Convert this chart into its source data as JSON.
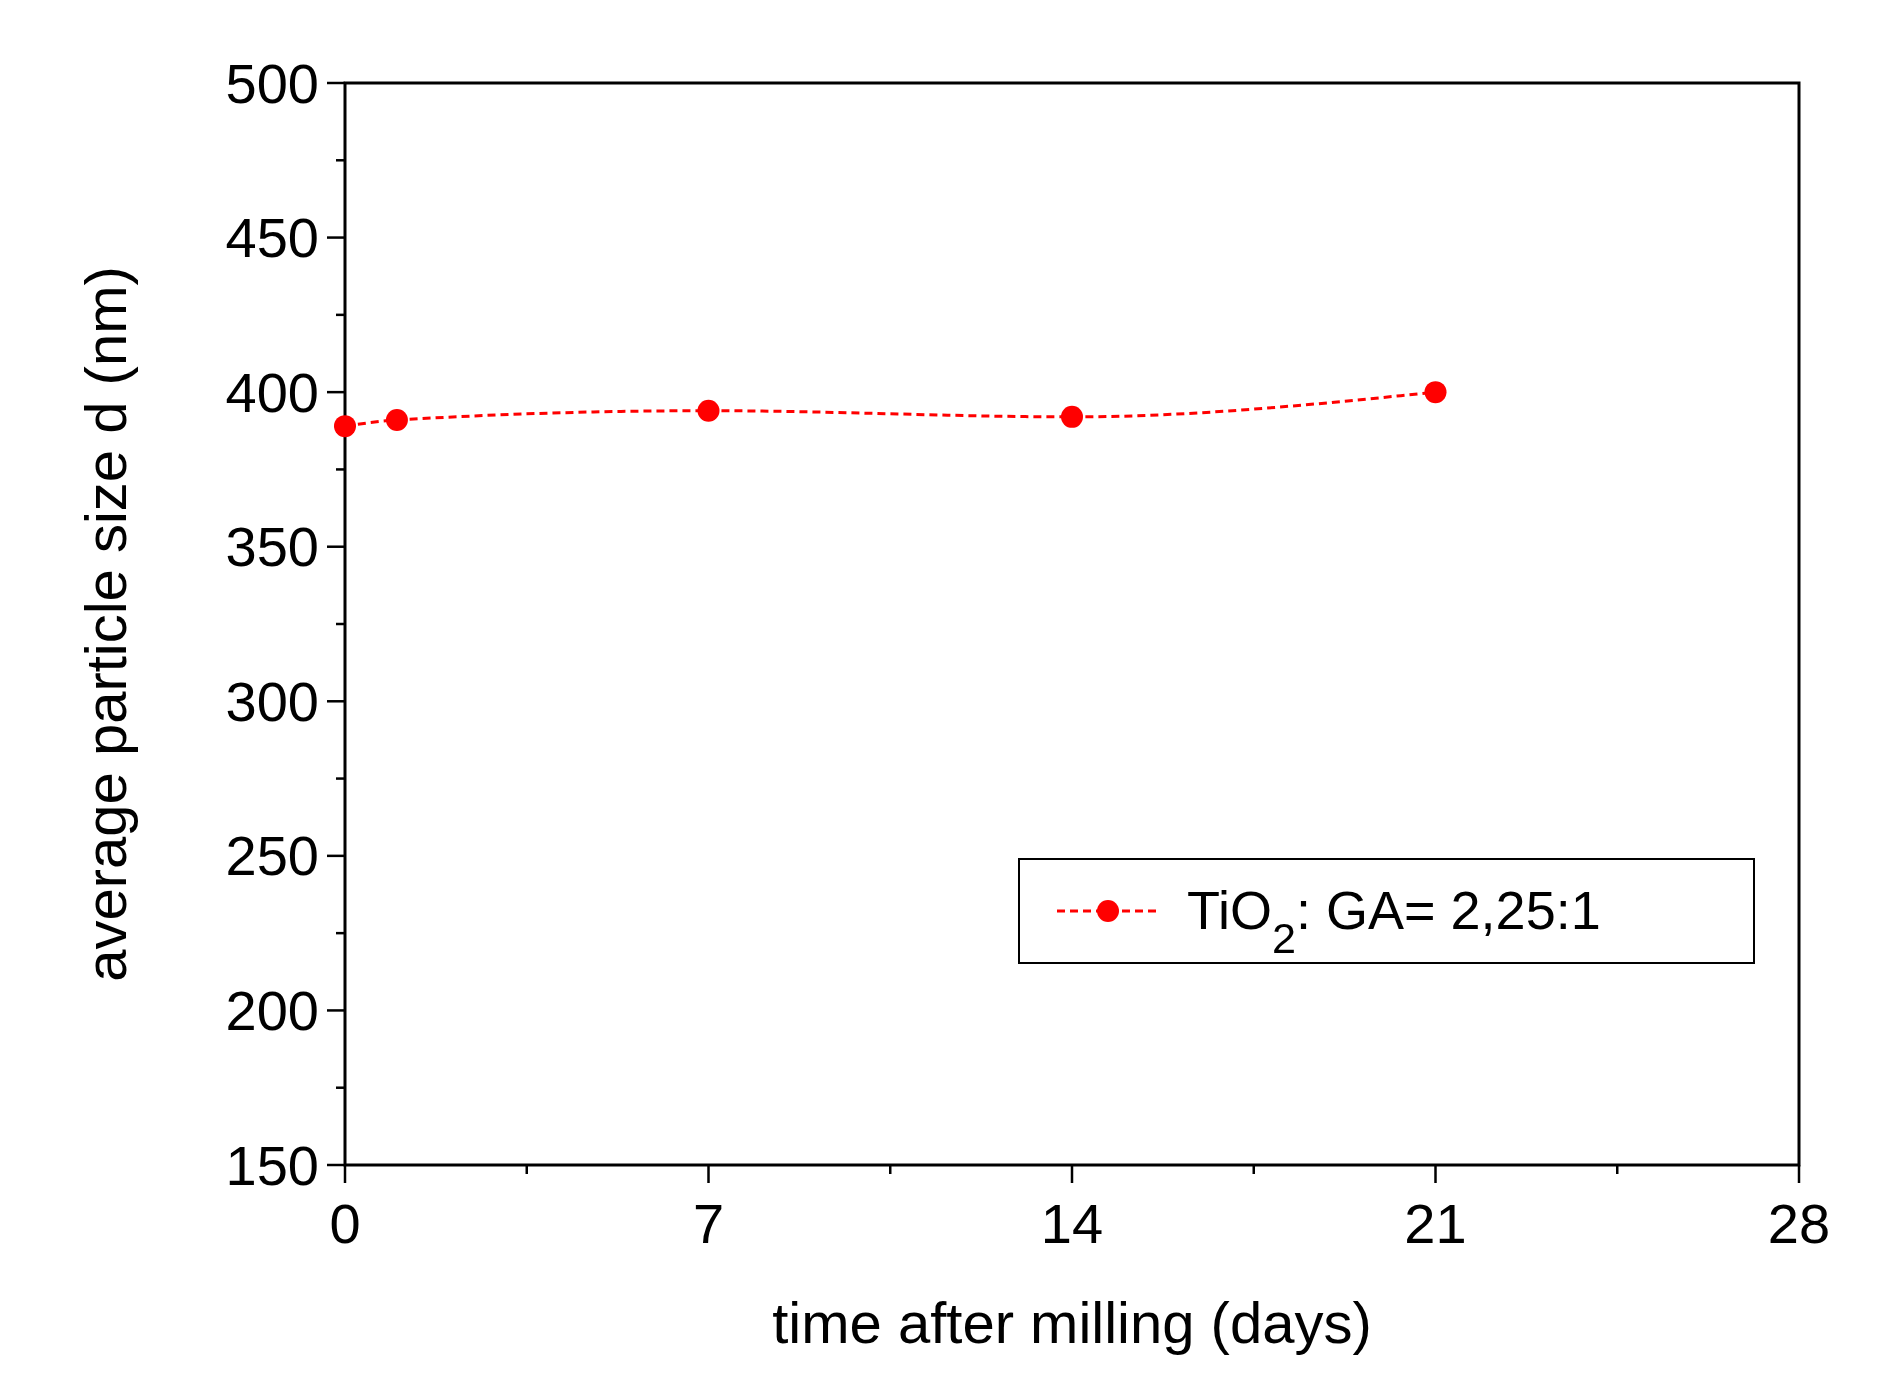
{
  "chart_data": {
    "type": "line",
    "xlabel": "time after milling (days)",
    "ylabel": "average particle size d (nm)",
    "x": [
      0,
      1,
      7,
      14,
      21
    ],
    "series": [
      {
        "name": "TiO$_{2}$: GA= 2,25:1",
        "color": "#ff0000",
        "values": [
          389,
          391,
          394,
          392,
          400
        ]
      }
    ],
    "xlim": [
      0,
      28
    ],
    "ylim": [
      150,
      500
    ],
    "xticks": [
      0,
      {
        "value": 3.5,
        "label": null
      },
      7,
      {
        "value": 10.5,
        "label": null
      },
      14,
      {
        "value": 17.5,
        "label": null
      },
      21,
      {
        "value": 24.5,
        "label": null
      },
      28
    ],
    "yticks": [
      150,
      {
        "value": 175,
        "label": null
      },
      200,
      {
        "value": 225,
        "label": null
      },
      250,
      {
        "value": 275,
        "label": null
      },
      300,
      {
        "value": 325,
        "label": null
      },
      350,
      {
        "value": 375,
        "label": null
      },
      400,
      {
        "value": 425,
        "label": null
      },
      450,
      {
        "value": 475,
        "label": null
      },
      500
    ],
    "marker": "circle",
    "line_style": "dashed",
    "legend": "bottom right",
    "grid": false
  }
}
